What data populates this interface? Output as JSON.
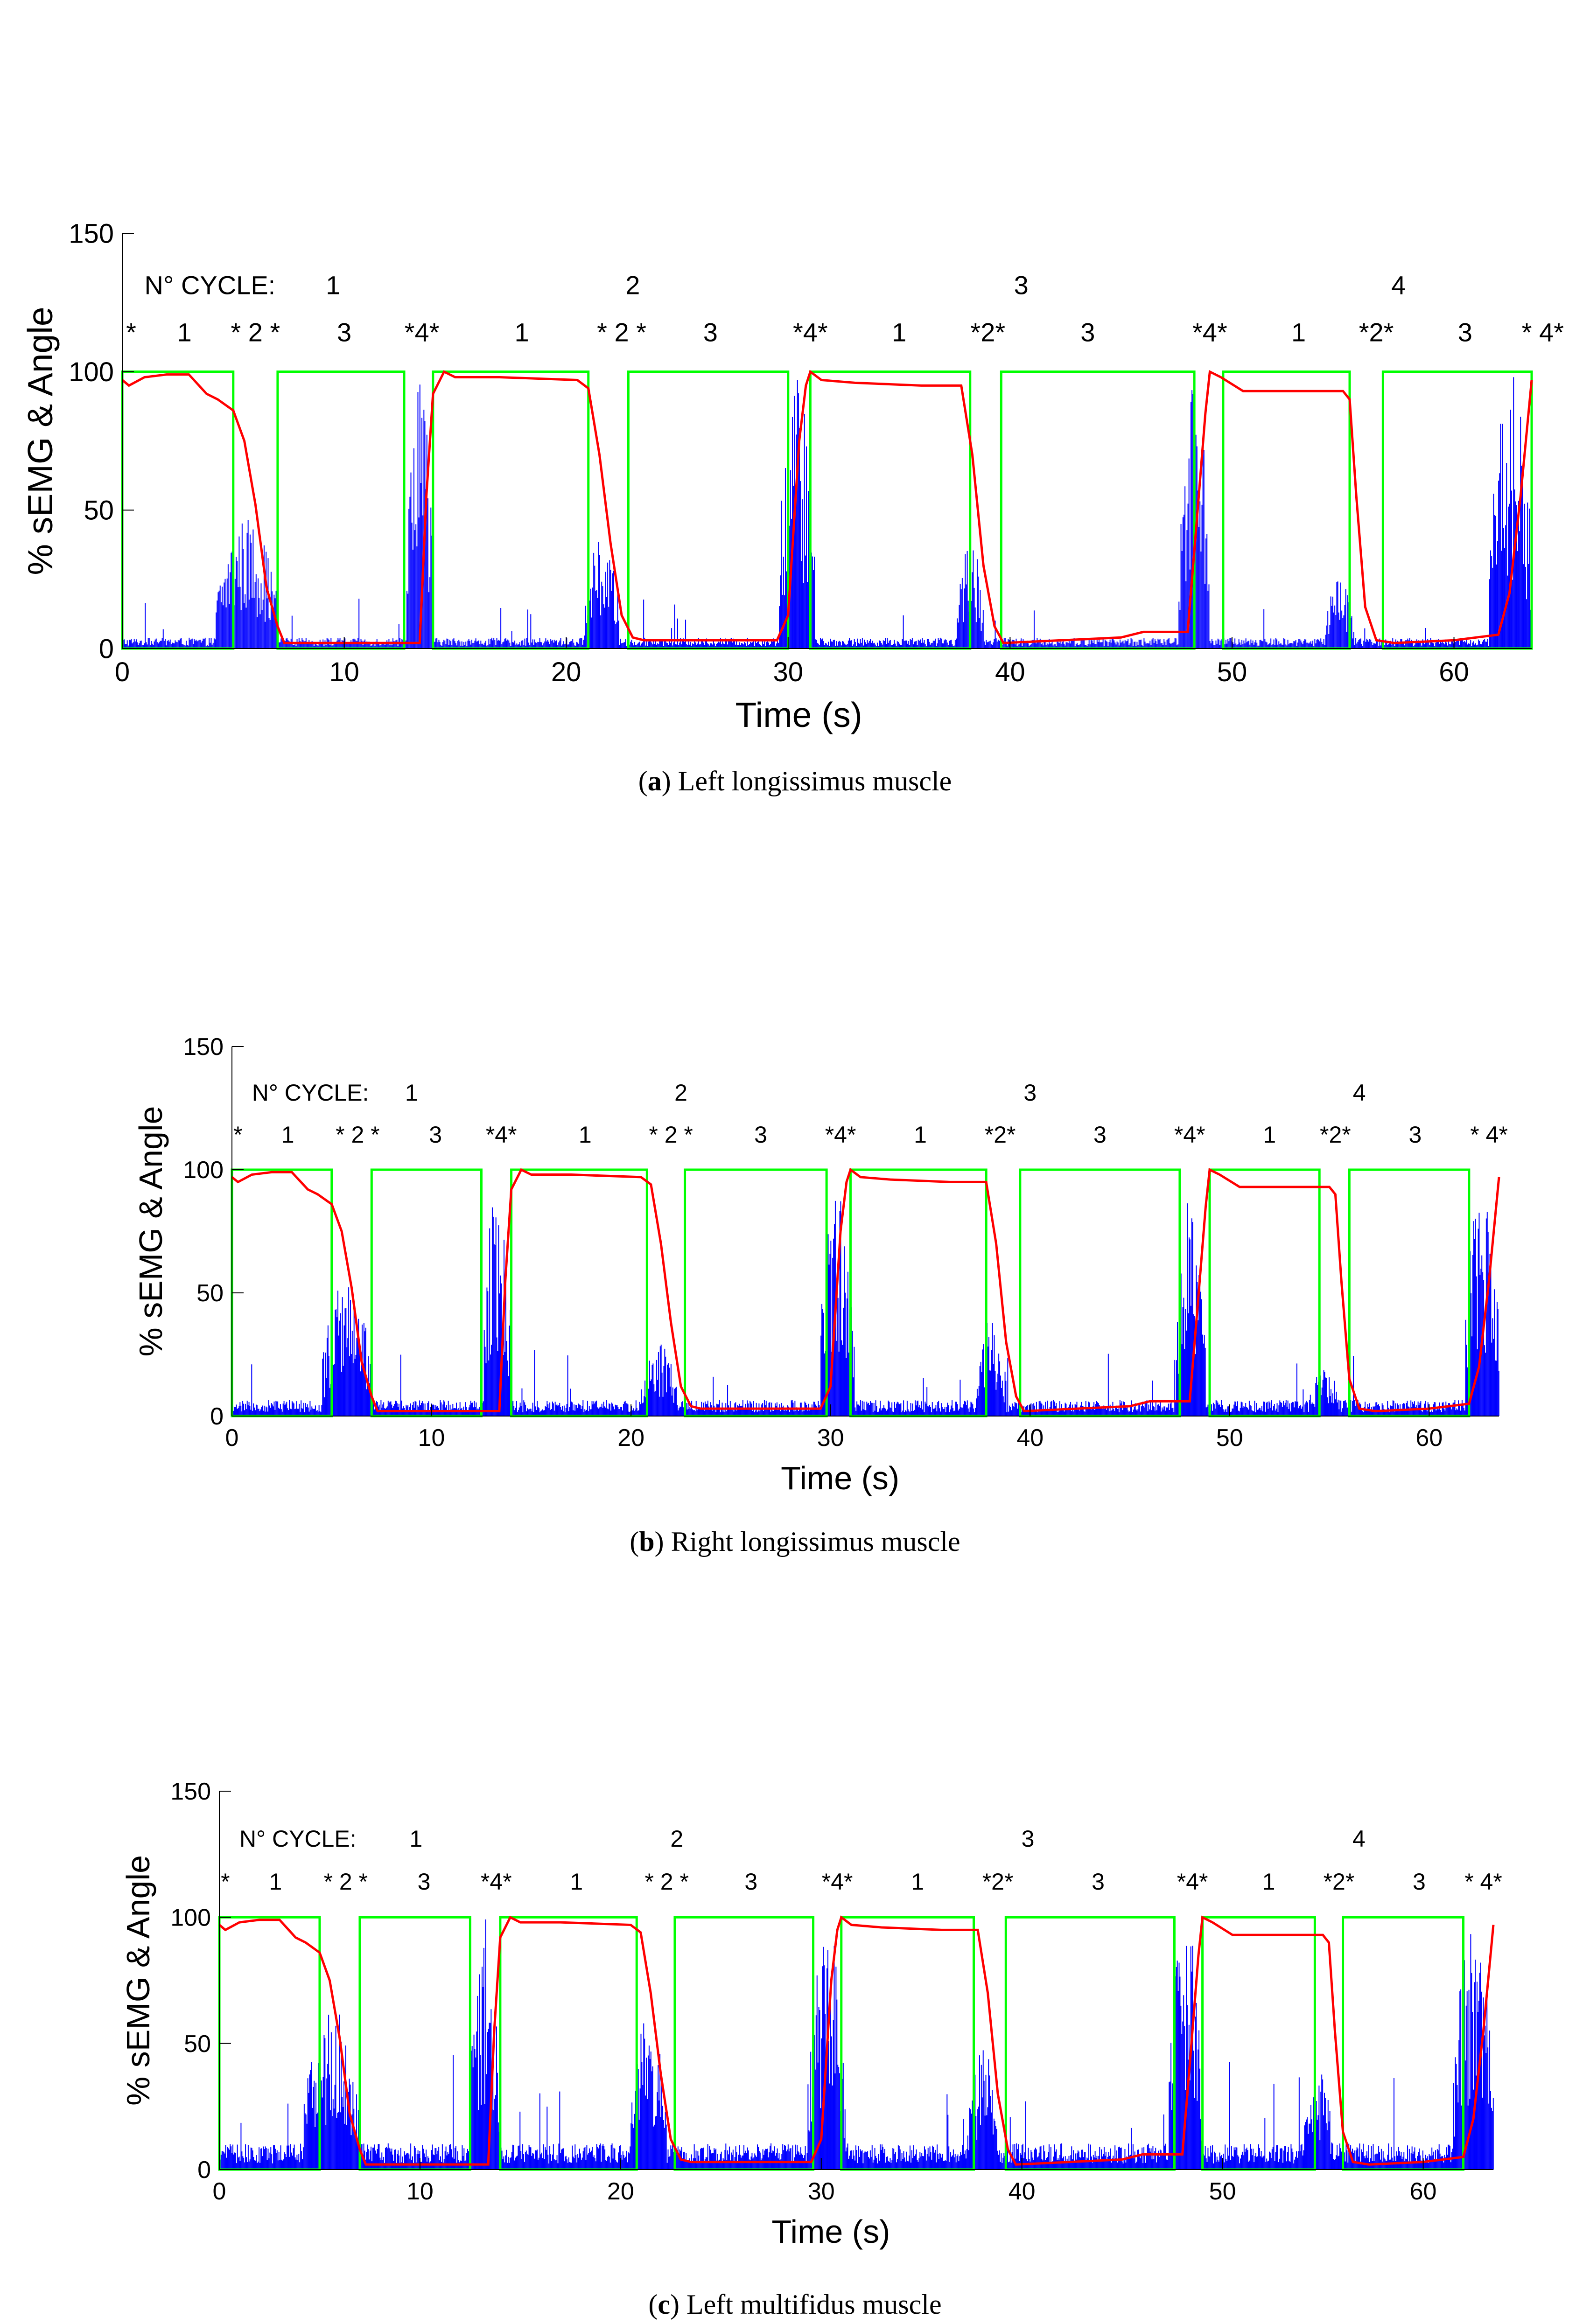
{
  "colors": {
    "semg": "#0000ff",
    "angle": "#ff0000",
    "phase": "#00ff00",
    "axis": "#000000"
  },
  "chart_data": [
    {
      "id": "a",
      "type": "line",
      "caption_tag": "a",
      "caption_text": "Left longissimus muscle",
      "xlabel": "Time (s)",
      "ylabel": "% sEMG & Angle",
      "xlim": [
        0,
        63.5
      ],
      "ylim": [
        0,
        150
      ],
      "xticks": [
        "0",
        "10",
        "20",
        "30",
        "40",
        "50",
        "60"
      ],
      "yticks": [
        "0",
        "50",
        "100",
        "150"
      ],
      "grid": false,
      "cycle_label": "N° CYCLE:",
      "cycles": [
        {
          "label": "1",
          "x": 9.5
        },
        {
          "label": "2",
          "x": 23
        },
        {
          "label": "3",
          "x": 40.5
        },
        {
          "label": "4",
          "x": 57.5
        }
      ],
      "phase_labels": [
        {
          "label": "*",
          "x": 0.4
        },
        {
          "label": "1",
          "x": 2.8
        },
        {
          "label": "* 2 *",
          "x": 6
        },
        {
          "label": "3",
          "x": 10
        },
        {
          "label": "*4*",
          "x": 13.5
        },
        {
          "label": "1",
          "x": 18
        },
        {
          "label": "* 2 *",
          "x": 22.5
        },
        {
          "label": "3",
          "x": 26.5
        },
        {
          "label": "*4*",
          "x": 31
        },
        {
          "label": "1",
          "x": 35
        },
        {
          "label": "*2*",
          "x": 39
        },
        {
          "label": "3",
          "x": 43.5
        },
        {
          "label": "*4*",
          "x": 49
        },
        {
          "label": "1",
          "x": 53
        },
        {
          "label": "*2*",
          "x": 56.5
        },
        {
          "label": "3",
          "x": 60.5
        },
        {
          "label": "* 4*",
          "x": 64
        }
      ],
      "phase_windows": [
        [
          0,
          5
        ],
        [
          7,
          12.7
        ],
        [
          14,
          21
        ],
        [
          22.8,
          30
        ],
        [
          31,
          38.2
        ],
        [
          39.6,
          48.3
        ],
        [
          49.6,
          55.3
        ],
        [
          56.8,
          63.5
        ]
      ],
      "phase_level": 100,
      "angle": {
        "x": [
          0,
          0.3,
          1,
          2,
          3,
          3.8,
          4.3,
          5,
          5.5,
          6,
          6.5,
          7,
          7.3,
          13.4,
          13.7,
          14,
          14.5,
          15,
          17,
          20.5,
          21,
          21.5,
          22,
          22.5,
          23,
          23.5,
          29.5,
          30,
          30.5,
          30.8,
          31,
          31.5,
          33,
          36,
          37.8,
          38.3,
          38.8,
          39.3,
          39.7,
          45,
          46,
          48,
          48.4,
          48.8,
          49,
          49.5,
          50.5,
          55,
          55.3,
          55.6,
          56,
          56.5,
          57.3,
          60,
          62,
          62.5,
          63,
          63.5
        ],
        "y": [
          97,
          95,
          98,
          99,
          99,
          92,
          90,
          86,
          75,
          52,
          22,
          8,
          2,
          2,
          55,
          92,
          100,
          98,
          98,
          97,
          94,
          70,
          38,
          12,
          4,
          3,
          3,
          12,
          75,
          95,
          100,
          97,
          96,
          95,
          95,
          70,
          30,
          8,
          2,
          4,
          6,
          6,
          45,
          85,
          100,
          98,
          93,
          93,
          90,
          55,
          15,
          3,
          2,
          3,
          5,
          20,
          55,
          97
        ]
      },
      "semg": {
        "baseline": 3,
        "bursts": [
          {
            "x": [
              4.2,
              7
            ],
            "peak": 48
          },
          {
            "x": [
              12.8,
              14
            ],
            "peak": 100
          },
          {
            "x": [
              20.8,
              22.4
            ],
            "peak": 40
          },
          {
            "x": [
              29.6,
              31.2
            ],
            "peak": 100
          },
          {
            "x": [
              37.6,
              38.8
            ],
            "peak": 40
          },
          {
            "x": [
              47.6,
              49
            ],
            "peak": 100
          },
          {
            "x": [
              54.2,
              55.5
            ],
            "peak": 25
          },
          {
            "x": [
              61.6,
              63.5
            ],
            "peak": 100
          }
        ]
      }
    },
    {
      "id": "b",
      "type": "line",
      "caption_tag": "b",
      "caption_text": "Right longissimus muscle",
      "xlabel": "Time (s)",
      "ylabel": "% sEMG & Angle",
      "xlim": [
        0,
        63.5
      ],
      "ylim": [
        0,
        150
      ],
      "xticks": [
        "0",
        "10",
        "20",
        "30",
        "40",
        "50",
        "60"
      ],
      "yticks": [
        "0",
        "50",
        "100",
        "150"
      ],
      "grid": false,
      "cycle_label": "N° CYCLE:",
      "cycles": [
        {
          "label": "1",
          "x": 9
        },
        {
          "label": "2",
          "x": 22.5
        },
        {
          "label": "3",
          "x": 40
        },
        {
          "label": "4",
          "x": 56.5
        }
      ],
      "phase_labels": [
        {
          "label": "*",
          "x": 0.3
        },
        {
          "label": "1",
          "x": 2.8
        },
        {
          "label": "* 2 *",
          "x": 6.3
        },
        {
          "label": "3",
          "x": 10.2
        },
        {
          "label": "*4*",
          "x": 13.5
        },
        {
          "label": "1",
          "x": 17.7
        },
        {
          "label": "* 2 *",
          "x": 22
        },
        {
          "label": "3",
          "x": 26.5
        },
        {
          "label": "*4*",
          "x": 30.5
        },
        {
          "label": "1",
          "x": 34.5
        },
        {
          "label": "*2*",
          "x": 38.5
        },
        {
          "label": "3",
          "x": 43.5
        },
        {
          "label": "*4*",
          "x": 48
        },
        {
          "label": "1",
          "x": 52
        },
        {
          "label": "*2*",
          "x": 55.3
        },
        {
          "label": "3",
          "x": 59.3
        },
        {
          "label": "* 4*",
          "x": 63
        }
      ],
      "phase_windows": [
        [
          0,
          5
        ],
        [
          7,
          12.5
        ],
        [
          14,
          20.8
        ],
        [
          22.7,
          29.8
        ],
        [
          31,
          37.8
        ],
        [
          39.5,
          47.5
        ],
        [
          49,
          54.5
        ],
        [
          56,
          62
        ]
      ],
      "phase_level": 100,
      "angle": {
        "x": [
          0,
          0.3,
          1,
          2,
          3,
          3.8,
          4.3,
          5,
          5.5,
          6,
          6.5,
          7,
          7.3,
          13.4,
          13.7,
          14,
          14.5,
          15,
          17,
          20.5,
          21,
          21.5,
          22,
          22.5,
          23,
          23.5,
          29.5,
          30,
          30.5,
          30.8,
          31,
          31.5,
          33,
          36,
          37.8,
          38.3,
          38.8,
          39.3,
          39.7,
          45,
          46,
          48,
          48.4,
          48.8,
          49,
          49.5,
          50.5,
          55,
          55.3,
          55.6,
          56,
          56.5,
          57.3,
          60,
          62,
          62.5,
          63,
          63.5
        ],
        "y": [
          97,
          95,
          98,
          99,
          99,
          92,
          90,
          86,
          75,
          52,
          22,
          8,
          2,
          2,
          55,
          92,
          100,
          98,
          98,
          97,
          94,
          70,
          38,
          12,
          4,
          3,
          3,
          12,
          75,
          95,
          100,
          97,
          96,
          95,
          95,
          70,
          30,
          8,
          2,
          4,
          6,
          6,
          45,
          85,
          100,
          98,
          93,
          93,
          90,
          55,
          15,
          3,
          2,
          3,
          5,
          20,
          55,
          97
        ]
      },
      "semg": {
        "baseline": 5,
        "bursts": [
          {
            "x": [
              4.5,
              7
            ],
            "peak": 58
          },
          {
            "x": [
              12.6,
              14
            ],
            "peak": 95
          },
          {
            "x": [
              20.5,
              22.3
            ],
            "peak": 30
          },
          {
            "x": [
              29.5,
              31.2
            ],
            "peak": 98
          },
          {
            "x": [
              37.3,
              38.8
            ],
            "peak": 40
          },
          {
            "x": [
              47.3,
              48.8
            ],
            "peak": 95
          },
          {
            "x": [
              54,
              55.5
            ],
            "peak": 20
          },
          {
            "x": [
              61.8,
              63.5
            ],
            "peak": 95
          }
        ]
      }
    },
    {
      "id": "c",
      "type": "line",
      "caption_tag": "c",
      "caption_text": "Left multifidus muscle",
      "xlabel": "Time (s)",
      "ylabel": "% sEMG & Angle",
      "xlim": [
        0,
        63.5
      ],
      "ylim": [
        0,
        150
      ],
      "xticks": [
        "0",
        "10",
        "20",
        "30",
        "40",
        "50",
        "60"
      ],
      "yticks": [
        "0",
        "50",
        "100",
        "150"
      ],
      "grid": false,
      "cycle_label": "N° CYCLE:",
      "cycles": [
        {
          "label": "1",
          "x": 9.8
        },
        {
          "label": "2",
          "x": 22.8
        },
        {
          "label": "3",
          "x": 40.3
        },
        {
          "label": "4",
          "x": 56.8
        }
      ],
      "phase_labels": [
        {
          "label": "*",
          "x": 0.3
        },
        {
          "label": "1",
          "x": 2.8
        },
        {
          "label": "* 2 *",
          "x": 6.3
        },
        {
          "label": "3",
          "x": 10.2
        },
        {
          "label": "*4*",
          "x": 13.8
        },
        {
          "label": "1",
          "x": 17.8
        },
        {
          "label": "* 2 *",
          "x": 22.3
        },
        {
          "label": "3",
          "x": 26.5
        },
        {
          "label": "*4*",
          "x": 30.8
        },
        {
          "label": "1",
          "x": 34.8
        },
        {
          "label": "*2*",
          "x": 38.8
        },
        {
          "label": "3",
          "x": 43.8
        },
        {
          "label": "*4*",
          "x": 48.5
        },
        {
          "label": "1",
          "x": 52.3
        },
        {
          "label": "*2*",
          "x": 55.8
        },
        {
          "label": "3",
          "x": 59.8
        },
        {
          "label": "* 4*",
          "x": 63
        }
      ],
      "phase_windows": [
        [
          0,
          5
        ],
        [
          7,
          12.5
        ],
        [
          14,
          20.8
        ],
        [
          22.7,
          29.6
        ],
        [
          31,
          37.6
        ],
        [
          39.2,
          47.6
        ],
        [
          49,
          54.6
        ],
        [
          56,
          62
        ]
      ],
      "phase_level": 100,
      "angle": {
        "x": [
          0,
          0.3,
          1,
          2,
          3,
          3.8,
          4.3,
          5,
          5.5,
          6,
          6.5,
          7,
          7.3,
          13.4,
          13.7,
          14,
          14.5,
          15,
          17,
          20.5,
          21,
          21.5,
          22,
          22.5,
          23,
          23.5,
          29.5,
          30,
          30.5,
          30.8,
          31,
          31.5,
          33,
          36,
          37.8,
          38.3,
          38.8,
          39.3,
          39.7,
          45,
          46,
          48,
          48.4,
          48.8,
          49,
          49.5,
          50.5,
          55,
          55.3,
          55.6,
          56,
          56.5,
          57.3,
          60,
          62,
          62.5,
          63,
          63.5
        ],
        "y": [
          97,
          95,
          98,
          99,
          99,
          92,
          90,
          86,
          75,
          52,
          22,
          8,
          2,
          2,
          55,
          92,
          100,
          98,
          98,
          97,
          94,
          70,
          38,
          12,
          4,
          3,
          3,
          12,
          75,
          95,
          100,
          97,
          96,
          95,
          95,
          70,
          30,
          8,
          2,
          4,
          6,
          6,
          45,
          85,
          100,
          98,
          93,
          93,
          90,
          55,
          15,
          3,
          2,
          3,
          5,
          20,
          55,
          97
        ]
      },
      "semg": {
        "baseline": 8,
        "bursts": [
          {
            "x": [
              4.2,
              7
            ],
            "peak": 65
          },
          {
            "x": [
              12.5,
              14
            ],
            "peak": 100
          },
          {
            "x": [
              20.5,
              22.3
            ],
            "peak": 62
          },
          {
            "x": [
              29.3,
              31.2
            ],
            "peak": 100
          },
          {
            "x": [
              37.3,
              38.8
            ],
            "peak": 50
          },
          {
            "x": [
              47.3,
              49
            ],
            "peak": 100
          },
          {
            "x": [
              54,
              55.5
            ],
            "peak": 40
          },
          {
            "x": [
              61.5,
              63.5
            ],
            "peak": 100
          }
        ]
      }
    }
  ]
}
